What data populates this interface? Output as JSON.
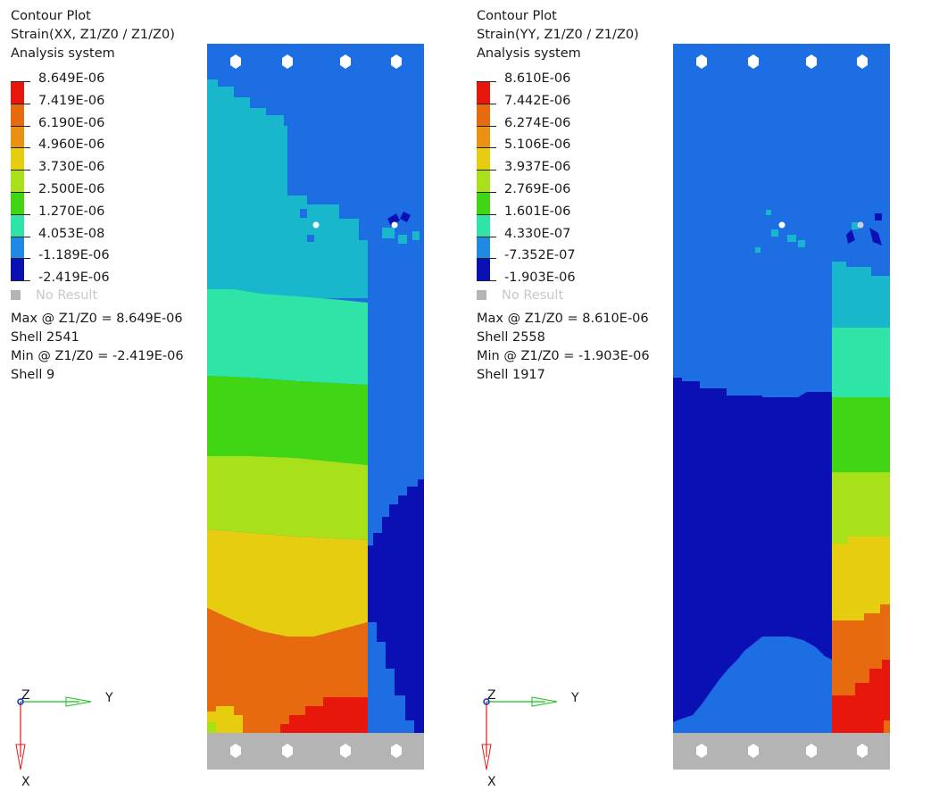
{
  "palette": {
    "red": "#e8170c",
    "orange": "#e86a0e",
    "amber": "#eb9111",
    "yellow": "#e6cd10",
    "yellow_green": "#a8e01a",
    "green": "#40d614",
    "aqua": "#2ee4a7",
    "teal": "#19b7cc",
    "blue": "#1e6ee3",
    "dark_blue": "#0a10b4",
    "gray": "#b4b4b4",
    "hole": "#ffffff"
  },
  "panels": [
    {
      "id": "xx",
      "title": "Contour Plot",
      "subtitle": "Strain(XX, Z1/Z0 / Z1/Z0)",
      "system": "Analysis system",
      "legend": [
        "8.649E-06",
        "7.419E-06",
        "6.190E-06",
        "4.960E-06",
        "3.730E-06",
        "2.500E-06",
        "1.270E-06",
        "4.053E-08",
        "-1.189E-06",
        "-2.419E-06"
      ],
      "legend_colors": [
        "#e8170c",
        "#e86a0e",
        "#eb9111",
        "#e6cd10",
        "#a8e01a",
        "#40d614",
        "#2ee4a7",
        "#19b7cc",
        "#1e6ee3",
        "#0a10b4"
      ],
      "no_result": "No Result",
      "max_line": "Max @ Z1/Z0 =  8.649E-06",
      "max_shell": "Shell 2541",
      "min_line": "Min @ Z1/Z0 = -2.419E-06",
      "min_shell": "Shell 9",
      "triad": {
        "z": "Z",
        "y": "Y",
        "x": "X"
      }
    },
    {
      "id": "yy",
      "title": "Contour Plot",
      "subtitle": "Strain(YY, Z1/Z0 / Z1/Z0)",
      "system": "Analysis system",
      "legend": [
        "8.610E-06",
        "7.442E-06",
        "6.274E-06",
        "5.106E-06",
        "3.937E-06",
        "2.769E-06",
        "1.601E-06",
        "4.330E-07",
        "-7.352E-07",
        "-1.903E-06"
      ],
      "legend_colors": [
        "#e8170c",
        "#e86a0e",
        "#eb9111",
        "#e6cd10",
        "#a8e01a",
        "#40d614",
        "#2ee4a7",
        "#19b7cc",
        "#1e6ee3",
        "#0a10b4"
      ],
      "no_result": "No Result",
      "max_line": "Max @ Z1/Z0 =  8.610E-06",
      "max_shell": "Shell 2558",
      "min_line": "Min @ Z1/Z0 = -1.903E-06",
      "min_shell": "Shell 1917",
      "triad": {
        "z": "Z",
        "y": "Y",
        "x": "X"
      }
    }
  ]
}
